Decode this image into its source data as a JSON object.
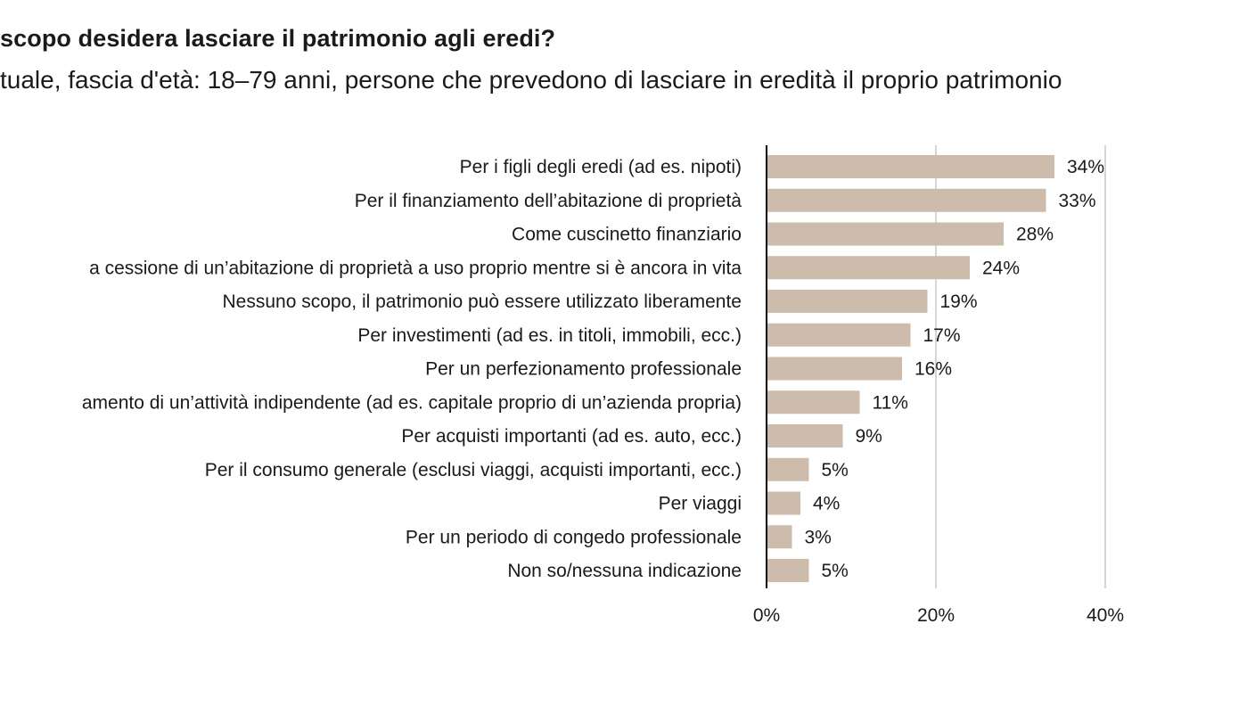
{
  "chart_data": {
    "type": "bar",
    "orientation": "horizontal",
    "title": "scopo desidera lasciare il patrimonio agli eredi?",
    "subtitle": "tuale, fascia d'età: 18–79 anni, persone che prevedono di lasciare in eredità il proprio patrimonio",
    "categories": [
      "Per i figli degli eredi (ad es. nipoti)",
      "Per il finanziamento dell’abitazione di proprietà",
      "Come cuscinetto finanziario",
      "a cessione di un’abitazione di proprietà a uso proprio mentre si è ancora in vita",
      "Nessuno scopo, il patrimonio può essere utilizzato liberamente",
      "Per investimenti (ad es. in titoli, immobili, ecc.)",
      "Per un perfezionamento professionale",
      "amento di un’attività indipendente (ad es. capitale proprio di un’azienda propria)",
      "Per acquisti importanti (ad es. auto, ecc.)",
      "Per il consumo generale (esclusi viaggi, acquisti importanti, ecc.)",
      "Per viaggi",
      "Per un periodo di congedo professionale",
      "Non so/nessuna indicazione"
    ],
    "values": [
      34,
      33,
      28,
      24,
      19,
      17,
      16,
      11,
      9,
      5,
      4,
      3,
      5
    ],
    "value_labels": [
      "34%",
      "33%",
      "28%",
      "24%",
      "19%",
      "17%",
      "16%",
      "11%",
      "9%",
      "5%",
      "4%",
      "3%",
      "5%"
    ],
    "xlim": [
      0,
      60
    ],
    "xticks": [
      0,
      20,
      40
    ],
    "xtick_labels": [
      "0%",
      "20%",
      "40%"
    ],
    "grid": true,
    "legend": "none",
    "bar_color": "#cdbcab",
    "grid_color": "#c8c8c8",
    "axis_color": "#000000"
  }
}
